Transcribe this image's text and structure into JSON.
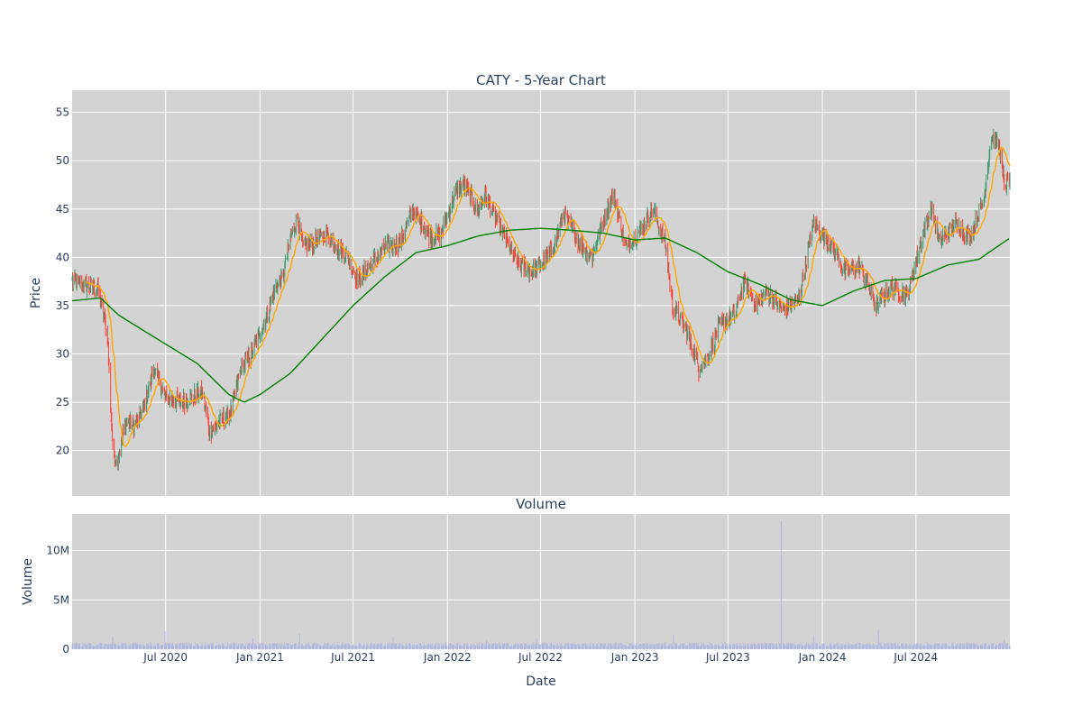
{
  "chart_data": [
    {
      "type": "candlestick",
      "title": "CATY - 5-Year Chart",
      "ylabel": "Price",
      "ylim": [
        15.3,
        57.3
      ],
      "yticks": [
        20,
        25,
        30,
        35,
        40,
        45,
        50,
        55
      ],
      "xlim": [
        "2020-01-01",
        "2024-12-31"
      ],
      "grid": true,
      "legend": "none",
      "colors": {
        "up": "#3d9970",
        "down": "#ff4136",
        "ma_short": "#ffa500",
        "ma_long": "#008000",
        "background": "#d3d3d3"
      },
      "close_keypoints": [
        [
          "2020-01-01",
          37.5
        ],
        [
          "2020-02-20",
          36.8
        ],
        [
          "2020-03-10",
          32.0
        ],
        [
          "2020-03-20",
          20.0
        ],
        [
          "2020-03-28",
          18.8
        ],
        [
          "2020-04-15",
          23.0
        ],
        [
          "2020-05-01",
          22.5
        ],
        [
          "2020-05-20",
          24.5
        ],
        [
          "2020-06-08",
          28.5
        ],
        [
          "2020-07-01",
          25.5
        ],
        [
          "2020-08-01",
          25.0
        ],
        [
          "2020-09-10",
          26.0
        ],
        [
          "2020-09-25",
          22.0
        ],
        [
          "2020-10-15",
          23.0
        ],
        [
          "2020-11-05",
          24.0
        ],
        [
          "2020-11-25",
          28.5
        ],
        [
          "2020-12-15",
          30.0
        ],
        [
          "2021-01-15",
          34.0
        ],
        [
          "2021-02-01",
          37.0
        ],
        [
          "2021-02-15",
          38.0
        ],
        [
          "2021-03-01",
          42.0
        ],
        [
          "2021-03-15",
          44.0
        ],
        [
          "2021-03-25",
          41.0
        ],
        [
          "2021-04-15",
          41.5
        ],
        [
          "2021-05-10",
          42.5
        ],
        [
          "2021-06-01",
          41.0
        ],
        [
          "2021-06-20",
          40.0
        ],
        [
          "2021-07-10",
          37.5
        ],
        [
          "2021-08-01",
          39.0
        ],
        [
          "2021-09-01",
          41.0
        ],
        [
          "2021-10-01",
          41.5
        ],
        [
          "2021-10-25",
          45.0
        ],
        [
          "2021-12-01",
          42.0
        ],
        [
          "2021-12-20",
          42.5
        ],
        [
          "2022-01-15",
          46.5
        ],
        [
          "2022-02-01",
          47.5
        ],
        [
          "2022-03-01",
          45.0
        ],
        [
          "2022-03-15",
          46.5
        ],
        [
          "2022-04-15",
          43.0
        ],
        [
          "2022-05-15",
          39.5
        ],
        [
          "2022-06-15",
          38.5
        ],
        [
          "2022-07-15",
          40.0
        ],
        [
          "2022-08-01",
          42.0
        ],
        [
          "2022-08-15",
          44.5
        ],
        [
          "2022-09-15",
          41.5
        ],
        [
          "2022-10-10",
          40.0
        ],
        [
          "2022-11-01",
          44.0
        ],
        [
          "2022-11-20",
          46.5
        ],
        [
          "2022-12-15",
          41.0
        ],
        [
          "2023-01-15",
          43.0
        ],
        [
          "2023-02-05",
          45.0
        ],
        [
          "2023-03-01",
          41.5
        ],
        [
          "2023-03-15",
          35.0
        ],
        [
          "2023-04-10",
          32.5
        ],
        [
          "2023-05-05",
          28.5
        ],
        [
          "2023-05-25",
          30.0
        ],
        [
          "2023-06-15",
          33.0
        ],
        [
          "2023-07-15",
          34.0
        ],
        [
          "2023-08-01",
          37.5
        ],
        [
          "2023-08-25",
          35.0
        ],
        [
          "2023-09-15",
          36.5
        ],
        [
          "2023-10-15",
          34.5
        ],
        [
          "2023-11-15",
          35.5
        ],
        [
          "2023-12-15",
          43.5
        ],
        [
          "2024-01-15",
          41.5
        ],
        [
          "2024-02-15",
          38.5
        ],
        [
          "2024-03-15",
          39.0
        ],
        [
          "2024-04-15",
          35.0
        ],
        [
          "2024-05-15",
          37.0
        ],
        [
          "2024-06-15",
          36.0
        ],
        [
          "2024-07-15",
          42.5
        ],
        [
          "2024-08-01",
          45.0
        ],
        [
          "2024-08-15",
          41.5
        ],
        [
          "2024-09-15",
          43.5
        ],
        [
          "2024-10-15",
          42.0
        ],
        [
          "2024-11-10",
          46.0
        ],
        [
          "2024-11-25",
          52.5
        ],
        [
          "2024-12-10",
          51.5
        ],
        [
          "2024-12-20",
          47.5
        ],
        [
          "2024-12-31",
          48.0
        ]
      ],
      "ma_long_keypoints": [
        [
          "2020-01-01",
          35.5
        ],
        [
          "2020-02-25",
          35.8
        ],
        [
          "2020-04-01",
          34.0
        ],
        [
          "2020-06-01",
          32.0
        ],
        [
          "2020-09-01",
          29.0
        ],
        [
          "2020-11-01",
          25.8
        ],
        [
          "2020-12-01",
          25.0
        ],
        [
          "2021-01-01",
          25.8
        ],
        [
          "2021-03-01",
          28.0
        ],
        [
          "2021-05-01",
          31.5
        ],
        [
          "2021-07-01",
          35.0
        ],
        [
          "2021-09-01",
          38.0
        ],
        [
          "2021-11-01",
          40.5
        ],
        [
          "2022-01-01",
          41.2
        ],
        [
          "2022-03-01",
          42.2
        ],
        [
          "2022-05-01",
          42.8
        ],
        [
          "2022-07-01",
          43.0
        ],
        [
          "2022-09-01",
          42.8
        ],
        [
          "2022-11-01",
          42.5
        ],
        [
          "2023-01-01",
          41.8
        ],
        [
          "2023-03-01",
          42.0
        ],
        [
          "2023-05-01",
          40.5
        ],
        [
          "2023-07-01",
          38.5
        ],
        [
          "2023-09-01",
          37.2
        ],
        [
          "2023-11-01",
          35.6
        ],
        [
          "2024-01-01",
          35.0
        ],
        [
          "2024-03-01",
          36.5
        ],
        [
          "2024-05-01",
          37.6
        ],
        [
          "2024-07-01",
          37.8
        ],
        [
          "2024-09-01",
          39.2
        ],
        [
          "2024-11-01",
          39.8
        ],
        [
          "2024-12-31",
          42.0
        ]
      ]
    },
    {
      "type": "bar",
      "title": "Volume",
      "xlabel": "Date",
      "ylabel": "Volume",
      "ylim": [
        0,
        13700000
      ],
      "yticks": [
        0,
        5000000,
        10000000
      ],
      "ytick_labels": [
        "0",
        "5M",
        "10M"
      ],
      "xticks": [
        "2020-07-01",
        "2021-01-01",
        "2021-07-01",
        "2022-01-01",
        "2022-07-01",
        "2023-01-01",
        "2023-07-01",
        "2024-01-01",
        "2024-07-01"
      ],
      "xtick_labels": [
        "Jul 2020",
        "Jan 2021",
        "Jul 2021",
        "Jan 2022",
        "Jul 2022",
        "Jan 2023",
        "Jul 2023",
        "Jan 2024",
        "Jul 2024"
      ],
      "color": "#b0b8e0",
      "typical_volume": 450000,
      "spikes": [
        [
          "2020-03-20",
          1300000
        ],
        [
          "2020-06-30",
          1800000
        ],
        [
          "2020-12-18",
          1100000
        ],
        [
          "2021-03-19",
          1600000
        ],
        [
          "2021-09-17",
          1300000
        ],
        [
          "2022-03-18",
          900000
        ],
        [
          "2022-06-24",
          1100000
        ],
        [
          "2023-03-17",
          1500000
        ],
        [
          "2023-10-13",
          13000000
        ],
        [
          "2023-12-15",
          1400000
        ],
        [
          "2024-04-19",
          1900000
        ],
        [
          "2024-12-20",
          1000000
        ]
      ]
    }
  ]
}
